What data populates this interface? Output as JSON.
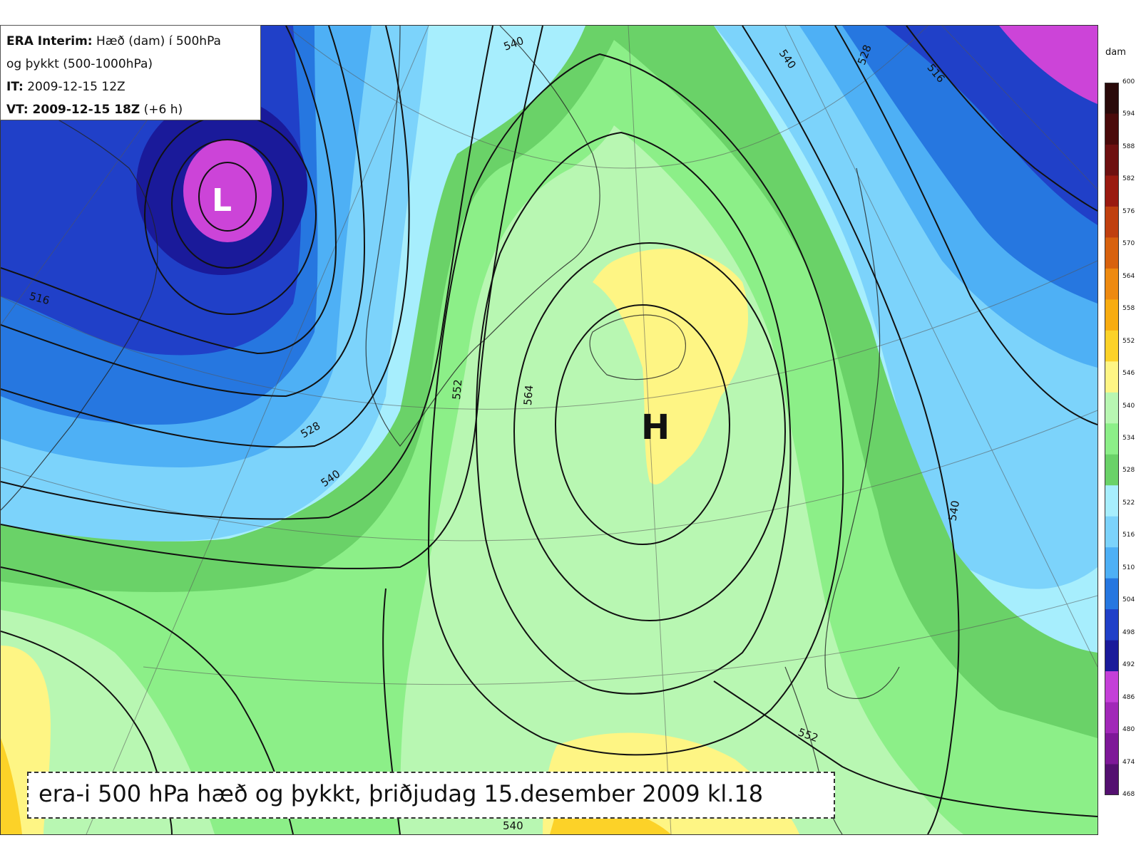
{
  "info": {
    "line1_bold": "ERA Interim:",
    "line1_rest": " Hæð (dam) í 500hPa",
    "line2": "og þykkt (500-1000hPa)",
    "line3_bold": "IT:",
    "line3_rest": " 2009-12-15 12Z",
    "line4_bold": "VT:",
    "line4_bold2": " 2009-12-15 18Z",
    "line4_rest": " (+6 h)"
  },
  "caption": "era-i 500 hPa hæð og þykkt, þriðjudag 15.desember 2009 kl.18",
  "systems": {
    "low": "L",
    "high": "H"
  },
  "contour_labels": [
    "540",
    "528",
    "516",
    "540",
    "516",
    "528",
    "540",
    "552",
    "564",
    "540",
    "552",
    "540"
  ],
  "colorbar": {
    "unit": "dam",
    "ticks": [
      "600",
      "594",
      "588",
      "582",
      "576",
      "570",
      "564",
      "558",
      "552",
      "546",
      "540",
      "534",
      "528",
      "522",
      "516",
      "510",
      "504",
      "498",
      "492",
      "486",
      "480",
      "474",
      "468"
    ],
    "colors": [
      "#2a0a0a",
      "#4a0a0a",
      "#6e1010",
      "#9a1a10",
      "#c0400f",
      "#d8620e",
      "#ee8a10",
      "#f8ac10",
      "#fcd228",
      "#fef584",
      "#b8f7b2",
      "#8cef88",
      "#6ad268",
      "#a7eefd",
      "#7cd3fb",
      "#4eb0f5",
      "#2677e0",
      "#2040c8",
      "#1a1a9a",
      "#c440d8",
      "#a128b8",
      "#7e1898",
      "#541070"
    ]
  },
  "colors": {
    "low_fill": "#cc44d8",
    "high_fill": "#fef584"
  }
}
